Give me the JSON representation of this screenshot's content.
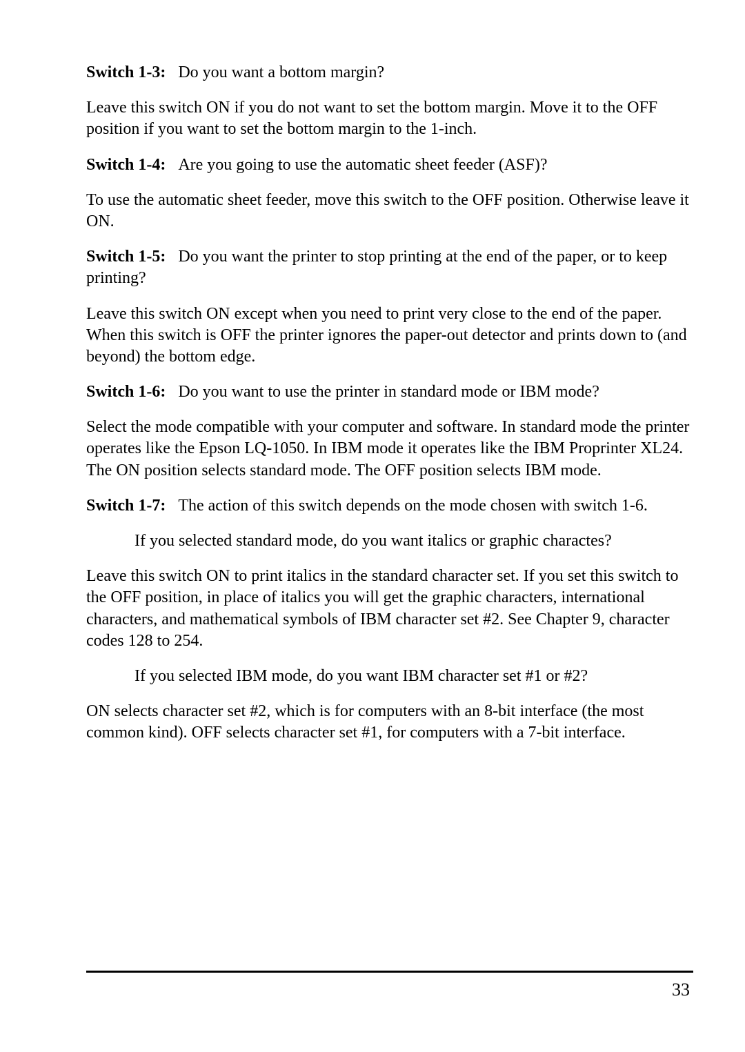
{
  "switch13": {
    "label": "Switch 1-3:",
    "question": "Do you want a bottom margin?",
    "explanation": "Leave this switch ON if you do not want to set the bottom margin. Move it to the OFF position if you want to set the bottom margin to the 1-inch."
  },
  "switch14": {
    "label": "Switch 1-4:",
    "question": "Are you going to use the automatic sheet feeder (ASF)?",
    "explanation": "To use the automatic sheet feeder, move this switch to the OFF position. Otherwise leave it ON."
  },
  "switch15": {
    "label": "Switch 1-5:",
    "question": "Do you want the printer to stop printing at the end of the paper, or to keep printing?",
    "explanation": "Leave this switch ON except when you need to print very close to the end of the paper. When this switch is OFF the printer ignores the paper-out detector and prints down to (and beyond) the bottom edge."
  },
  "switch16": {
    "label": "Switch 1-6:",
    "question": "Do you want to use the printer in standard mode or IBM mode?",
    "explanation": "Select the mode compatible with your computer and software. In standard mode the printer operates like the Epson LQ-1050. In IBM mode it operates like the IBM Proprinter XL24. The ON position selects standard mode. The OFF position selects IBM mode."
  },
  "switch17": {
    "label": "Switch 1-7:",
    "question": "The action of this switch depends on the mode chosen with switch 1-6.",
    "subQuestion1": "If you selected standard mode, do you want italics or graphic charactes?",
    "explanation1": "Leave this switch ON to print italics in the standard character set. If you set this switch to the OFF position, in place of italics you will get the graphic characters, international characters, and mathematical symbols of IBM character set #2. See Chapter 9, character codes 128 to 254.",
    "subQuestion2": "If you selected IBM mode, do you want IBM character set #1 or #2?",
    "explanation2": "ON selects character set #2, which is for computers with an 8-bit interface (the most common kind). OFF selects character set #1, for computers with a 7-bit interface."
  },
  "pageNumber": "33"
}
